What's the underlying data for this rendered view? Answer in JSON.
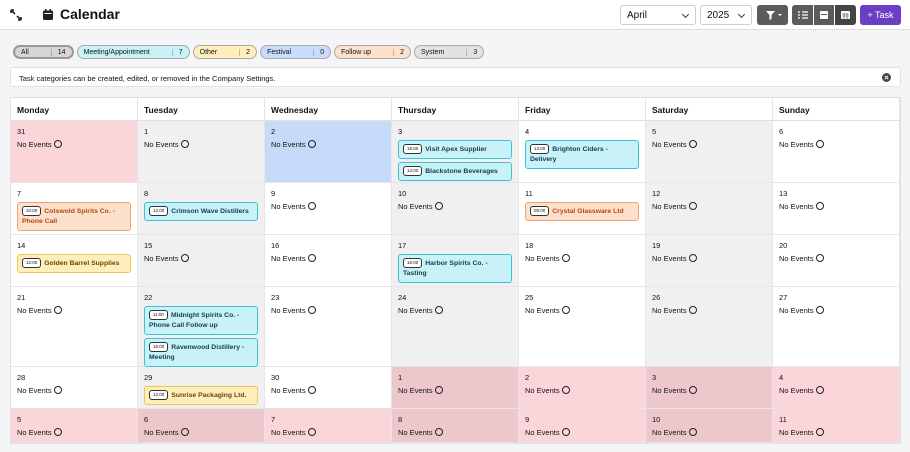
{
  "header": {
    "title": "Calendar",
    "month": "April",
    "year": "2025",
    "add_button": "+ Task"
  },
  "filters": [
    {
      "label": "All",
      "count": "14",
      "color": "#d6d6d6"
    },
    {
      "label": "Meeting/Appointment",
      "count": "7",
      "color": "#c8f2f8"
    },
    {
      "label": "Other",
      "count": "2",
      "color": "#fdeebb"
    },
    {
      "label": "Festival",
      "count": "0",
      "color": "#c9dcfb"
    },
    {
      "label": "Follow up",
      "count": "2",
      "color": "#fde0cc"
    },
    {
      "label": "System",
      "count": "3",
      "color": "#e2e2e2"
    }
  ],
  "notice": "Task categories can be created, edited, or removed in the Company Settings.",
  "calendar": {
    "weekdays": [
      "Monday",
      "Tuesday",
      "Wednesday",
      "Thursday",
      "Friday",
      "Saturday",
      "Sunday"
    ],
    "empty_label": "No Events",
    "weeks": [
      [
        {
          "day": "31",
          "in_month": false,
          "events": []
        },
        {
          "day": "1",
          "events": []
        },
        {
          "day": "2",
          "today": true,
          "events": []
        },
        {
          "day": "3",
          "events": [
            {
              "time": "16:00",
              "title": "Visit Apex Supplier",
              "color": "cyan"
            },
            {
              "time": "14:00",
              "title": "Blackstone Beverages",
              "color": "cyan"
            }
          ]
        },
        {
          "day": "4",
          "events": [
            {
              "time": "13:00",
              "title": "Brighton Ciders - Delivery",
              "color": "cyan"
            }
          ]
        },
        {
          "day": "5",
          "events": []
        },
        {
          "day": "6",
          "events": []
        }
      ],
      [
        {
          "day": "7",
          "events": [
            {
              "time": "10:00",
              "title": "Cotswold Spirits Co. - Phone Call",
              "color": "orange"
            }
          ]
        },
        {
          "day": "8",
          "events": [
            {
              "time": "12:00",
              "title": "Crimson Wave Distillers",
              "color": "cyan"
            }
          ]
        },
        {
          "day": "9",
          "events": []
        },
        {
          "day": "10",
          "events": []
        },
        {
          "day": "11",
          "events": [
            {
              "time": "09:00",
              "title": "Crystal Glassware Ltd",
              "color": "orange"
            }
          ]
        },
        {
          "day": "12",
          "events": []
        },
        {
          "day": "13",
          "events": []
        }
      ],
      [
        {
          "day": "14",
          "events": [
            {
              "time": "12:00",
              "title": "Golden Barrel Supplies",
              "color": "yellow"
            }
          ]
        },
        {
          "day": "15",
          "events": []
        },
        {
          "day": "16",
          "events": []
        },
        {
          "day": "17",
          "events": [
            {
              "time": "16:00",
              "title": "Harbor Spirits Co. - Tasting",
              "color": "cyan"
            }
          ]
        },
        {
          "day": "18",
          "events": []
        },
        {
          "day": "19",
          "events": []
        },
        {
          "day": "20",
          "events": []
        }
      ],
      [
        {
          "day": "21",
          "events": []
        },
        {
          "day": "22",
          "events": [
            {
              "time": "11:00",
              "title": "Midnight Spirits Co. - Phone Call Follow up",
              "color": "cyan"
            },
            {
              "time": "15:00",
              "title": "Ravenwood Distillery - Meeting",
              "color": "cyan"
            }
          ]
        },
        {
          "day": "23",
          "events": []
        },
        {
          "day": "24",
          "events": []
        },
        {
          "day": "25",
          "events": []
        },
        {
          "day": "26",
          "events": []
        },
        {
          "day": "27",
          "events": []
        }
      ],
      [
        {
          "day": "28",
          "events": []
        },
        {
          "day": "29",
          "events": [
            {
              "time": "12:00",
              "title": "Sunrise Packaging Ltd.",
              "color": "yellow"
            }
          ]
        },
        {
          "day": "30",
          "events": []
        },
        {
          "day": "1",
          "in_month": false,
          "events": []
        },
        {
          "day": "2",
          "in_month": false,
          "events": []
        },
        {
          "day": "3",
          "in_month": false,
          "events": []
        },
        {
          "day": "4",
          "in_month": false,
          "events": []
        }
      ],
      [
        {
          "day": "5",
          "in_month": false,
          "events": []
        },
        {
          "day": "6",
          "in_month": false,
          "events": []
        },
        {
          "day": "7",
          "in_month": false,
          "events": []
        },
        {
          "day": "8",
          "in_month": false,
          "events": []
        },
        {
          "day": "9",
          "in_month": false,
          "events": []
        },
        {
          "day": "10",
          "in_month": false,
          "events": []
        },
        {
          "day": "11",
          "in_month": false,
          "events": []
        }
      ]
    ]
  }
}
